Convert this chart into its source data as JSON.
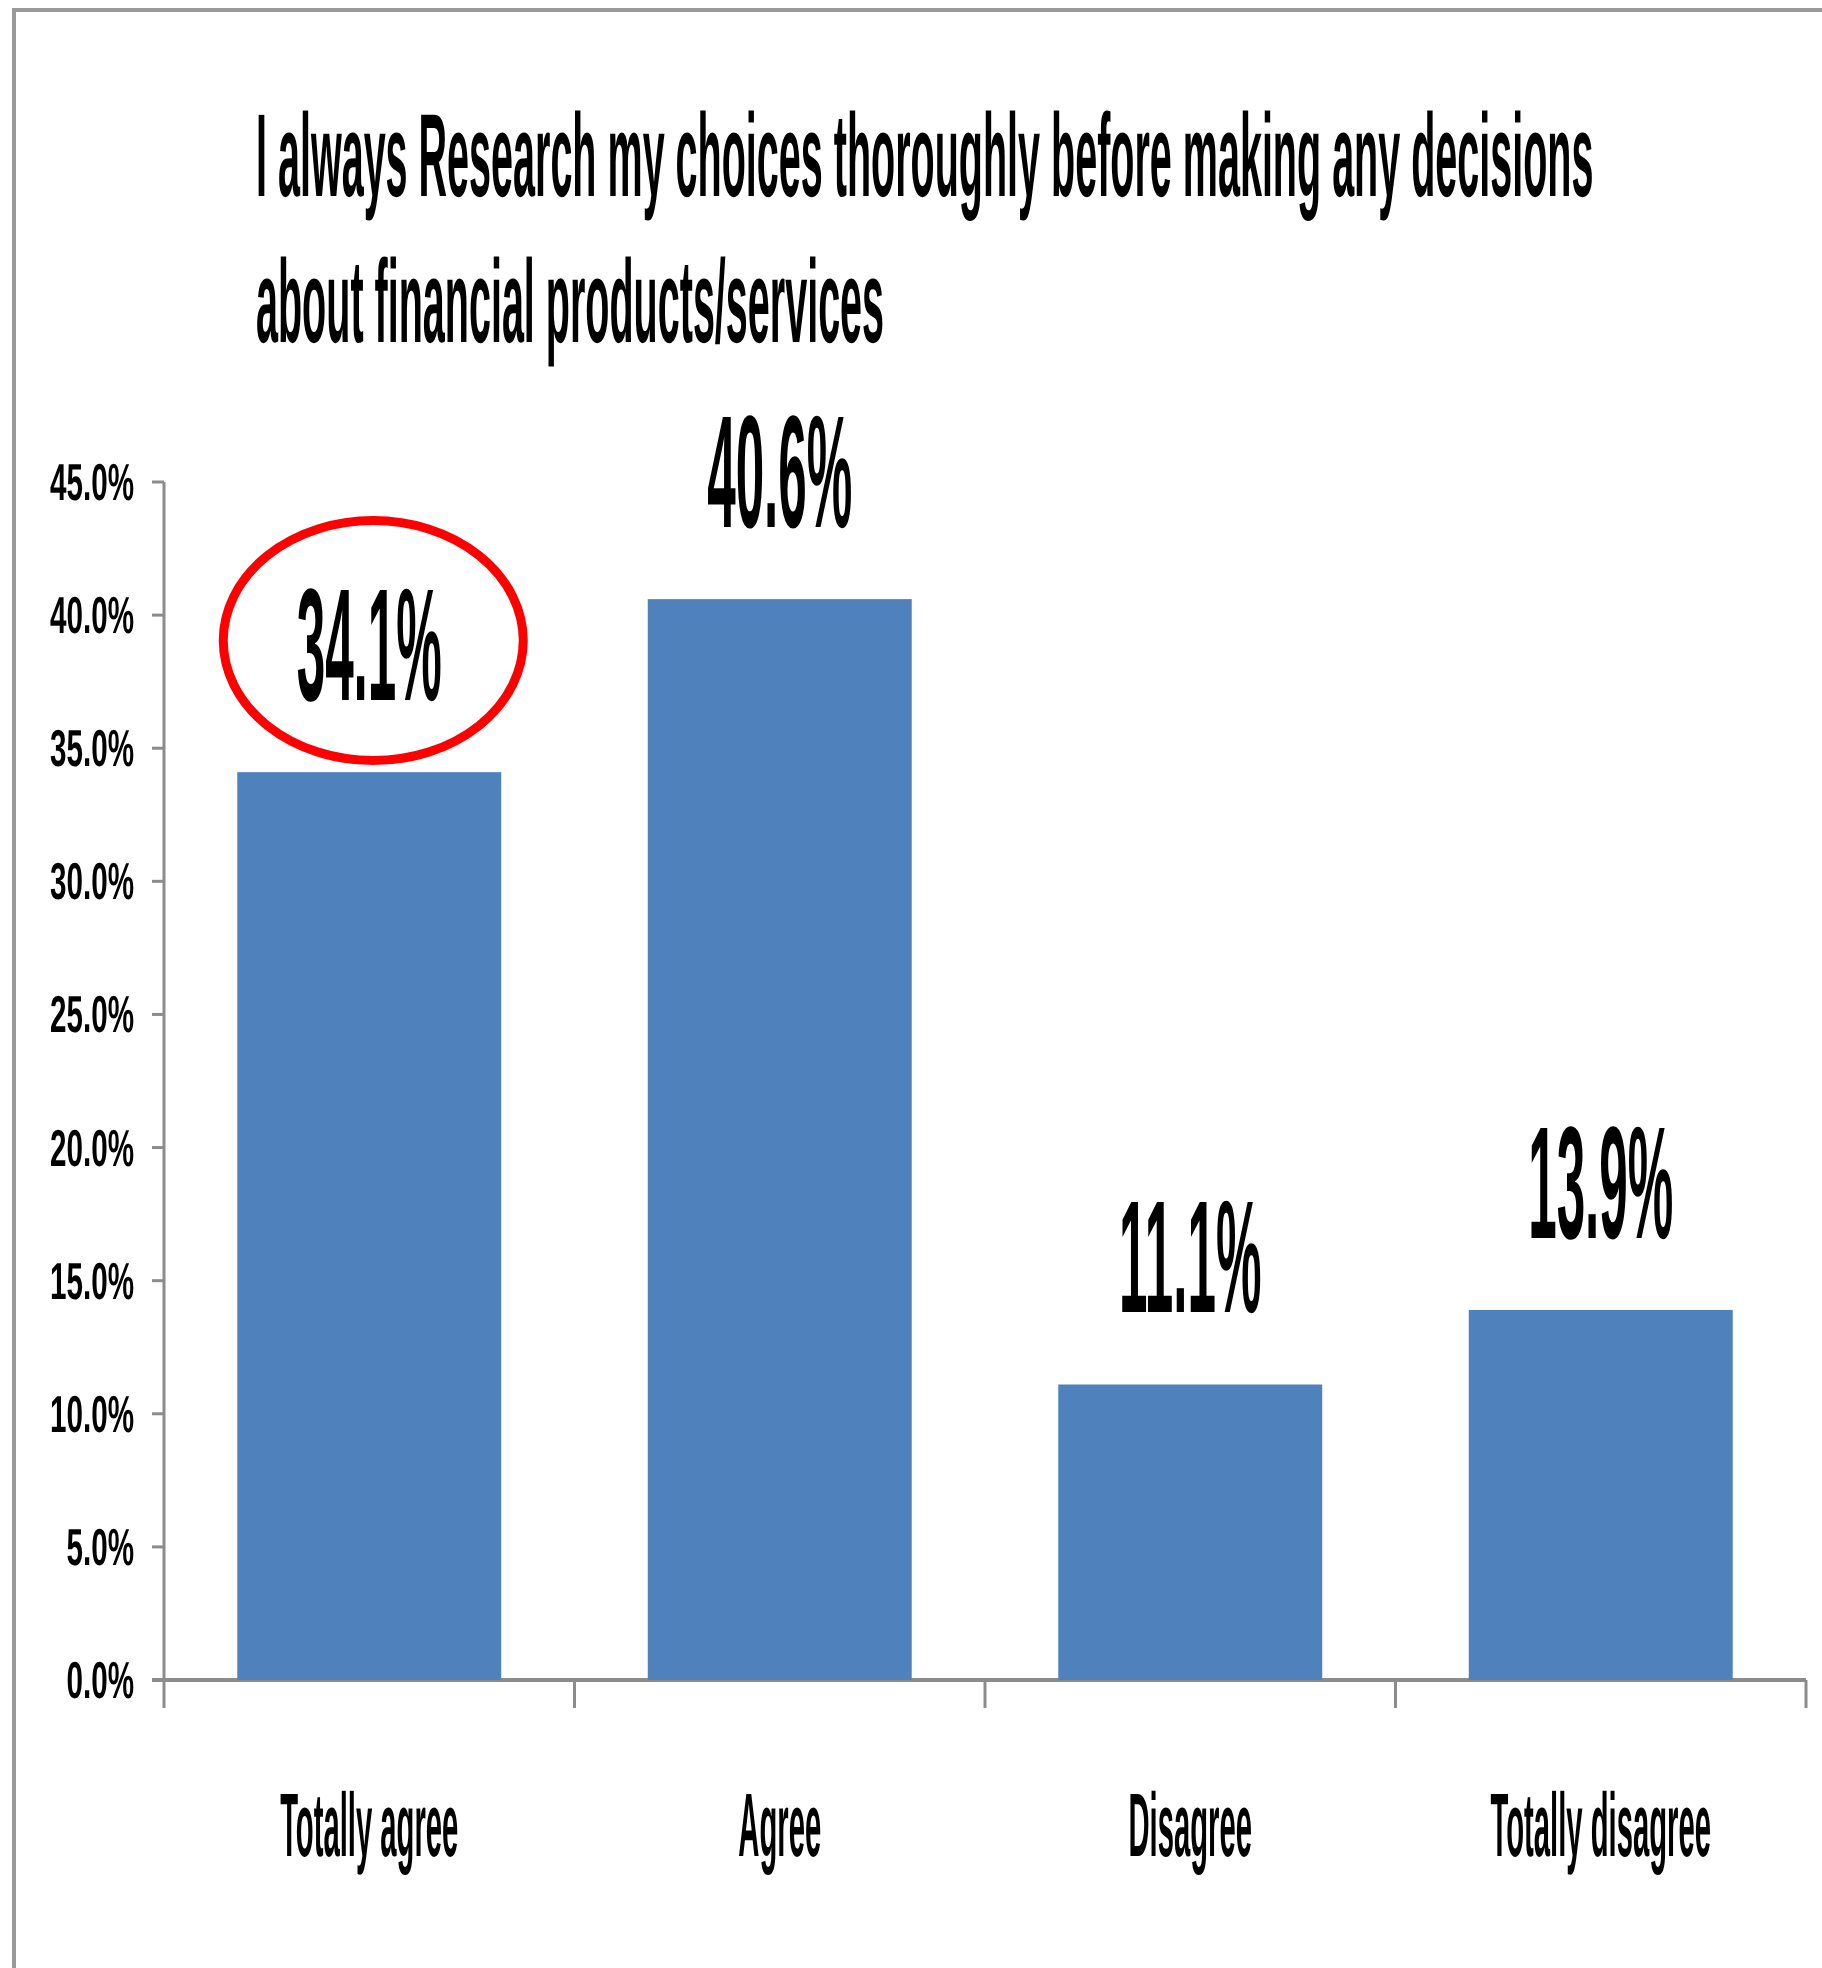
{
  "chart_data": {
    "type": "bar",
    "title": "I always Research my choices thoroughly before making any decisions about financial products/services",
    "categories": [
      "Totally agree",
      "Agree",
      "Disagree",
      "Totally disagree"
    ],
    "values": [
      34.1,
      40.6,
      11.1,
      13.9
    ],
    "value_labels": [
      "34.1%",
      "40.6%",
      "11.1%",
      "13.9%"
    ],
    "color": "#4f81bd",
    "ylim": [
      0,
      45
    ],
    "yticks": [
      {
        "value": 0,
        "label": "0.0%"
      },
      {
        "value": 5,
        "label": "5.0%"
      },
      {
        "value": 10,
        "label": "10.0%"
      },
      {
        "value": 15,
        "label": "15.0%"
      },
      {
        "value": 20,
        "label": "20.0%"
      },
      {
        "value": 25,
        "label": "25.0%"
      },
      {
        "value": 30,
        "label": "30.0%"
      },
      {
        "value": 35,
        "label": "35.0%"
      },
      {
        "value": 40,
        "label": "40.0%"
      },
      {
        "value": 45,
        "label": "45.0%"
      }
    ]
  }
}
